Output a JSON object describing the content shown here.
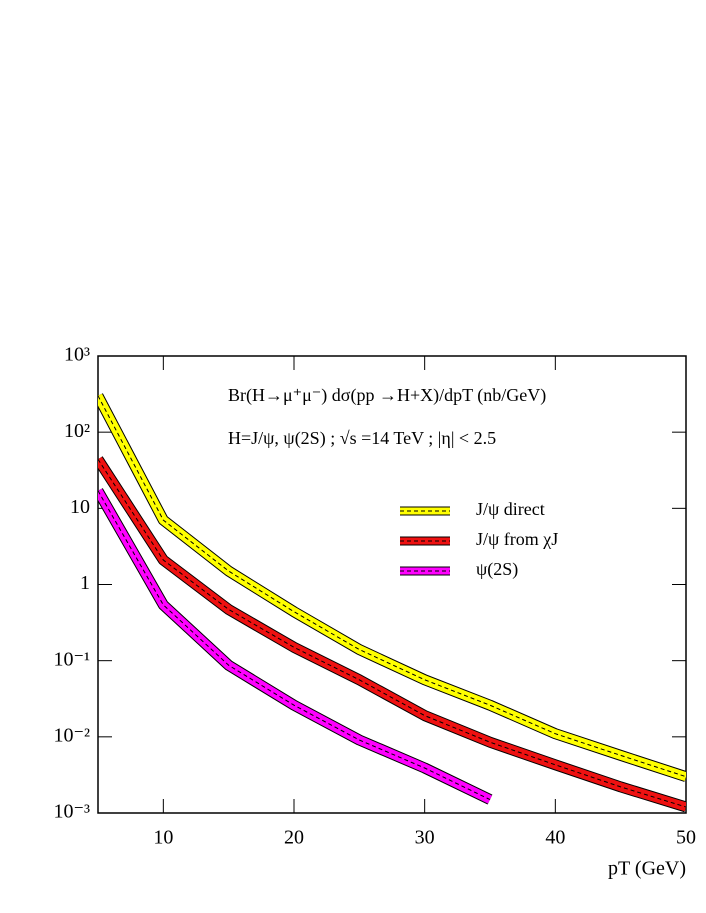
{
  "chart_data": {
    "type": "band",
    "annotations": [
      "Br(H→μ⁺μ⁻) dσ(pp →H+X)/dpT (nb/GeV)",
      "H=J/ψ, ψ(2S) ; √s =14 TeV ; |η| < 2.5"
    ],
    "x_label": "pT (GeV)",
    "x": [
      5,
      10,
      15,
      20,
      25,
      30,
      35,
      40,
      45,
      50
    ],
    "series": [
      {
        "name": "J/ψ direct",
        "color": "#ffff00",
        "values": [
          300,
          7,
          1.5,
          0.44,
          0.14,
          0.056,
          0.026,
          0.011,
          0.0057,
          0.003
        ]
      },
      {
        "name": "J/ψ from χJ",
        "color": "#ee1111",
        "values": [
          44,
          2.1,
          0.47,
          0.15,
          0.056,
          0.019,
          0.0085,
          0.0043,
          0.0022,
          0.0012
        ]
      },
      {
        "name": "ψ(2S)",
        "color": "#ff00ff",
        "values": [
          17,
          0.54,
          0.087,
          0.026,
          0.0091,
          0.0039,
          0.0015,
          null,
          null,
          null
        ]
      }
    ],
    "xlim": [
      5,
      50
    ],
    "xticks": [
      10,
      20,
      30,
      40,
      50
    ],
    "ylim": [
      0.001,
      1000
    ],
    "log_y": true,
    "yticks": [
      {
        "value": 1000,
        "label": "10³"
      },
      {
        "value": 100,
        "label": "10²"
      },
      10,
      1,
      {
        "value": 0.1,
        "label": "10⁻¹"
      },
      {
        "value": 0.01,
        "label": "10⁻²"
      },
      {
        "value": 0.001,
        "label": "10⁻³"
      }
    ]
  }
}
